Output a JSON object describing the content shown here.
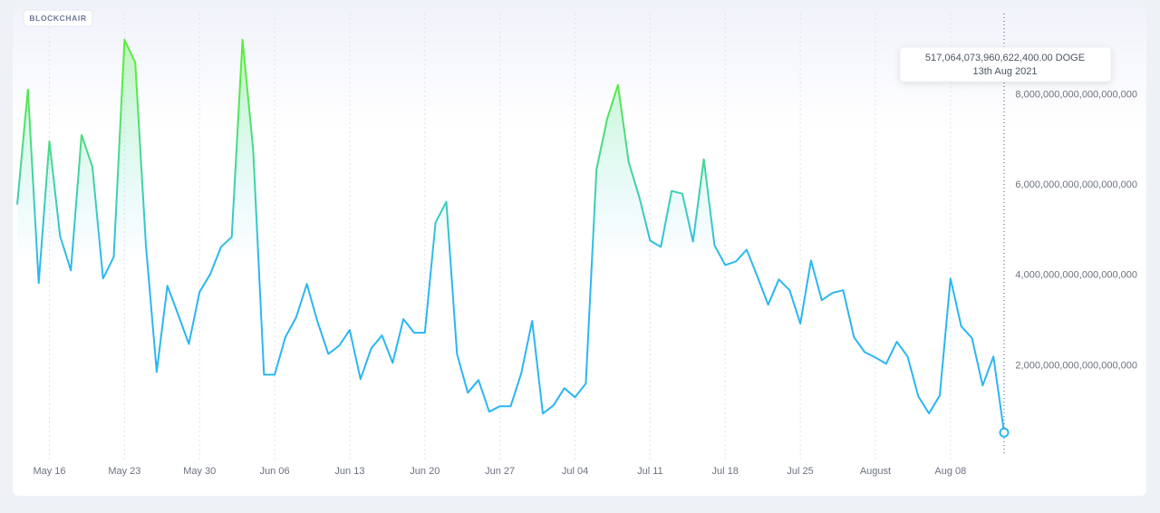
{
  "brand": "BLOCKCHAIR",
  "chart_data": {
    "type": "line",
    "x": [
      "2021-05-13",
      "2021-05-14",
      "2021-05-15",
      "2021-05-16",
      "2021-05-17",
      "2021-05-18",
      "2021-05-19",
      "2021-05-20",
      "2021-05-21",
      "2021-05-22",
      "2021-05-23",
      "2021-05-24",
      "2021-05-25",
      "2021-05-26",
      "2021-05-27",
      "2021-05-28",
      "2021-05-29",
      "2021-05-30",
      "2021-05-31",
      "2021-06-01",
      "2021-06-02",
      "2021-06-03",
      "2021-06-04",
      "2021-06-05",
      "2021-06-06",
      "2021-06-07",
      "2021-06-08",
      "2021-06-09",
      "2021-06-10",
      "2021-06-11",
      "2021-06-12",
      "2021-06-13",
      "2021-06-14",
      "2021-06-15",
      "2021-06-16",
      "2021-06-17",
      "2021-06-18",
      "2021-06-19",
      "2021-06-20",
      "2021-06-21",
      "2021-06-22",
      "2021-06-23",
      "2021-06-24",
      "2021-06-25",
      "2021-06-26",
      "2021-06-27",
      "2021-06-28",
      "2021-06-29",
      "2021-06-30",
      "2021-07-01",
      "2021-07-02",
      "2021-07-03",
      "2021-07-04",
      "2021-07-05",
      "2021-07-06",
      "2021-07-07",
      "2021-07-08",
      "2021-07-09",
      "2021-07-10",
      "2021-07-11",
      "2021-07-12",
      "2021-07-13",
      "2021-07-14",
      "2021-07-15",
      "2021-07-16",
      "2021-07-17",
      "2021-07-18",
      "2021-07-19",
      "2021-07-20",
      "2021-07-21",
      "2021-07-22",
      "2021-07-23",
      "2021-07-24",
      "2021-07-25",
      "2021-07-26",
      "2021-07-27",
      "2021-07-28",
      "2021-07-29",
      "2021-07-30",
      "2021-07-31",
      "2021-08-01",
      "2021-08-02",
      "2021-08-03",
      "2021-08-04",
      "2021-08-05",
      "2021-08-06",
      "2021-08-07",
      "2021-08-08",
      "2021-08-09",
      "2021-08-10",
      "2021-08-11",
      "2021-08-12",
      "2021-08-13"
    ],
    "series": [
      {
        "values": [
          5.57e+18,
          8.12e+18,
          3.83e+18,
          6.97e+18,
          4.87e+18,
          4.11e+18,
          7.11e+18,
          6.41e+18,
          3.93e+18,
          4.41e+18,
          9.22e+18,
          8.72e+18,
          4.67e+18,
          1.86e+18,
          3.77e+18,
          3.13e+18,
          2.48e+18,
          3.63e+18,
          4.03e+18,
          4.63e+18,
          4.85e+18,
          9.22e+18,
          6.77e+18,
          1.8e+18,
          1.8e+18,
          2.63e+18,
          3.07e+18,
          3.81e+18,
          2.97e+18,
          2.26e+18,
          2.44e+18,
          2.79e+18,
          1.7e+18,
          2.38e+18,
          2.67e+18,
          2.06e+18,
          3.03e+18,
          2.73e+18,
          2.73e+18,
          5.17e+18,
          5.63e+18,
          2.26e+18,
          1.4e+18,
          1.68e+18,
          9.8e+17,
          1.1e+18,
          1.1e+18,
          1.84e+18,
          2.99e+18,
          9.4e+17,
          1.12e+18,
          1.5e+18,
          1.3e+18,
          1.6e+18,
          6.35e+18,
          7.47e+18,
          8.22e+18,
          6.51e+18,
          5.73e+18,
          4.77e+18,
          4.63e+18,
          5.87e+18,
          5.81e+18,
          4.75e+18,
          6.57e+18,
          4.67e+18,
          4.23e+18,
          4.31e+18,
          4.57e+18,
          3.97e+18,
          3.35e+18,
          3.91e+18,
          3.67e+18,
          2.93e+18,
          4.33e+18,
          3.45e+18,
          3.61e+18,
          3.67e+18,
          2.63e+18,
          2.3e+18,
          2.18e+18,
          2.04e+18,
          2.53e+18,
          2.2e+18,
          1.32e+18,
          9.4e+17,
          1.34e+18,
          3.93e+18,
          2.87e+18,
          2.61e+18,
          1.56e+18,
          2.2e+18,
          517064073960622400
        ]
      }
    ],
    "line_colors": [
      "#58ee3c",
      "#2bb6f2"
    ],
    "xlim": [
      "2021-05-13",
      "2021-08-13"
    ],
    "xticks": [
      {
        "value": "2021-05-16",
        "label": "May 16"
      },
      {
        "value": "2021-05-23",
        "label": "May 23"
      },
      {
        "value": "2021-05-30",
        "label": "May 30"
      },
      {
        "value": "2021-06-06",
        "label": "Jun 06"
      },
      {
        "value": "2021-06-13",
        "label": "Jun 13"
      },
      {
        "value": "2021-06-20",
        "label": "Jun 20"
      },
      {
        "value": "2021-06-27",
        "label": "Jun 27"
      },
      {
        "value": "2021-07-04",
        "label": "Jul 04"
      },
      {
        "value": "2021-07-11",
        "label": "Jul 11"
      },
      {
        "value": "2021-07-18",
        "label": "Jul 18"
      },
      {
        "value": "2021-07-25",
        "label": "Jul 25"
      },
      {
        "value": "2021-08-01",
        "label": "August"
      },
      {
        "value": "2021-08-08",
        "label": "Aug 08"
      }
    ],
    "ylim": [
      0,
      9.8e+18
    ],
    "yticks": [
      {
        "value": 2e+18,
        "label": "2,000,000,000,000,000,000"
      },
      {
        "value": 4e+18,
        "label": "4,000,000,000,000,000,000"
      },
      {
        "value": 6e+18,
        "label": "6,000,000,000,000,000,000"
      },
      {
        "value": 8e+18,
        "label": "8,000,000,000,000,000,000"
      }
    ],
    "grid": true,
    "tooltip": {
      "value": "517,064,073,960,622,400.00 DOGE",
      "date": "13th Aug 2021"
    }
  }
}
